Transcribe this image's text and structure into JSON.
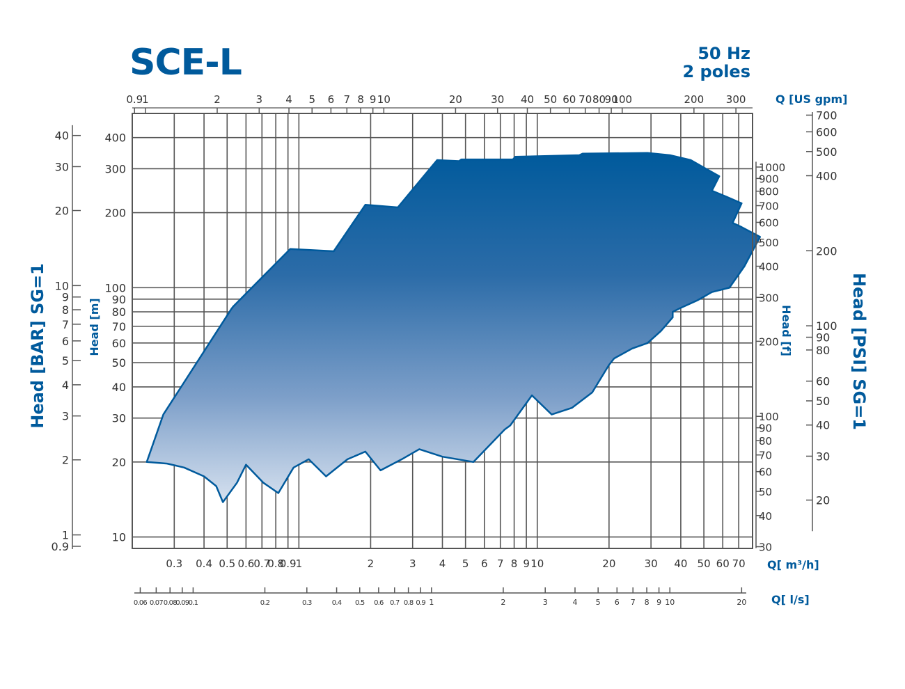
{
  "title": "SCE-L",
  "frequency": "50 Hz",
  "poles": "2 poles",
  "chart_data": {
    "type": "area",
    "title": "SCE-L",
    "subtitle": "50 Hz 2 poles",
    "xlabel": "Q[ m³/h]",
    "ylabel": "Head [m]",
    "x_scale": "log",
    "y_scale": "log",
    "xlim": [
      0.2,
      80
    ],
    "ylim": [
      9,
      500
    ],
    "grid": true,
    "colors": {
      "primary": "#005a9c",
      "grid": "#555555",
      "fill_top": "#005a9c",
      "fill_bottom": "#d6e1ef"
    },
    "x_ticks": [
      {
        "v": 0.3,
        "l": "0.3"
      },
      {
        "v": 0.4,
        "l": "0.4"
      },
      {
        "v": 0.5,
        "l": "0.5"
      },
      {
        "v": 0.6,
        "l": "0.6"
      },
      {
        "v": 0.7,
        "l": "0.7"
      },
      {
        "v": 0.8,
        "l": "0.8"
      },
      {
        "v": 0.9,
        "l": "0.9"
      },
      {
        "v": 1,
        "l": "1"
      },
      {
        "v": 2,
        "l": "2"
      },
      {
        "v": 3,
        "l": "3"
      },
      {
        "v": 4,
        "l": "4"
      },
      {
        "v": 5,
        "l": "5"
      },
      {
        "v": 6,
        "l": "6"
      },
      {
        "v": 7,
        "l": "7"
      },
      {
        "v": 8,
        "l": "8"
      },
      {
        "v": 9,
        "l": "9"
      },
      {
        "v": 10,
        "l": "10"
      },
      {
        "v": 20,
        "l": "20"
      },
      {
        "v": 30,
        "l": "30"
      },
      {
        "v": 40,
        "l": "40"
      },
      {
        "v": 50,
        "l": "50"
      },
      {
        "v": 60,
        "l": "60"
      },
      {
        "v": 70,
        "l": "70"
      }
    ],
    "y_ticks": [
      {
        "v": 10,
        "l": "10"
      },
      {
        "v": 20,
        "l": "20"
      },
      {
        "v": 30,
        "l": "30"
      },
      {
        "v": 40,
        "l": "40"
      },
      {
        "v": 50,
        "l": "50"
      },
      {
        "v": 60,
        "l": "60"
      },
      {
        "v": 70,
        "l": "70"
      },
      {
        "v": 80,
        "l": "80"
      },
      {
        "v": 90,
        "l": "90"
      },
      {
        "v": 100,
        "l": "100"
      },
      {
        "v": 200,
        "l": "200"
      },
      {
        "v": 300,
        "l": "300"
      },
      {
        "v": 400,
        "l": "400"
      }
    ],
    "top_axis": {
      "label": "Q [US gpm]",
      "ticks": [
        {
          "v": 0.9,
          "l": "0.9"
        },
        {
          "v": 1,
          "l": "1"
        },
        {
          "v": 2,
          "l": "2"
        },
        {
          "v": 3,
          "l": "3"
        },
        {
          "v": 4,
          "l": "4"
        },
        {
          "v": 5,
          "l": "5"
        },
        {
          "v": 6,
          "l": "6"
        },
        {
          "v": 7,
          "l": "7"
        },
        {
          "v": 8,
          "l": "8"
        },
        {
          "v": 9,
          "l": "9"
        },
        {
          "v": 10,
          "l": "10"
        },
        {
          "v": 20,
          "l": "20"
        },
        {
          "v": 30,
          "l": "30"
        },
        {
          "v": 40,
          "l": "40"
        },
        {
          "v": 50,
          "l": "50"
        },
        {
          "v": 60,
          "l": "60"
        },
        {
          "v": 70,
          "l": "70"
        },
        {
          "v": 80,
          "l": "80"
        },
        {
          "v": 90,
          "l": "90"
        },
        {
          "v": 100,
          "l": "100"
        },
        {
          "v": 200,
          "l": "200"
        },
        {
          "v": 300,
          "l": "300"
        }
      ]
    },
    "bottom_axis_ls": {
      "label": "Q[ l/s]",
      "ticks": [
        {
          "v": 0.06,
          "l": "0.06"
        },
        {
          "v": 0.07,
          "l": "0.07"
        },
        {
          "v": 0.08,
          "l": "0.08"
        },
        {
          "v": 0.09,
          "l": "0.09"
        },
        {
          "v": 0.1,
          "l": "0.1"
        },
        {
          "v": 0.2,
          "l": "0.2"
        },
        {
          "v": 0.3,
          "l": "0.3"
        },
        {
          "v": 0.4,
          "l": "0.4"
        },
        {
          "v": 0.5,
          "l": "0.5"
        },
        {
          "v": 0.6,
          "l": "0.6"
        },
        {
          "v": 0.7,
          "l": "0.7"
        },
        {
          "v": 0.8,
          "l": "0.8"
        },
        {
          "v": 0.9,
          "l": "0.9"
        },
        {
          "v": 1,
          "l": "1"
        },
        {
          "v": 2,
          "l": "2"
        },
        {
          "v": 3,
          "l": "3"
        },
        {
          "v": 4,
          "l": "4"
        },
        {
          "v": 5,
          "l": "5"
        },
        {
          "v": 6,
          "l": "6"
        },
        {
          "v": 7,
          "l": "7"
        },
        {
          "v": 8,
          "l": "8"
        },
        {
          "v": 9,
          "l": "9"
        },
        {
          "v": 10,
          "l": "10"
        },
        {
          "v": 20,
          "l": "20"
        }
      ]
    },
    "right_axis_ft": {
      "label": "Head [f]",
      "ticks": [
        {
          "v": 30,
          "l": "30"
        },
        {
          "v": 40,
          "l": "40"
        },
        {
          "v": 50,
          "l": "50"
        },
        {
          "v": 60,
          "l": "60"
        },
        {
          "v": 70,
          "l": "70"
        },
        {
          "v": 80,
          "l": "80"
        },
        {
          "v": 90,
          "l": "90"
        },
        {
          "v": 100,
          "l": "100"
        },
        {
          "v": 200,
          "l": "200"
        },
        {
          "v": 300,
          "l": "300"
        },
        {
          "v": 400,
          "l": "400"
        },
        {
          "v": 500,
          "l": "500"
        },
        {
          "v": 600,
          "l": "600"
        },
        {
          "v": 700,
          "l": "700"
        },
        {
          "v": 800,
          "l": "800"
        },
        {
          "v": 900,
          "l": "900"
        },
        {
          "v": 1000,
          "l": "1000"
        }
      ]
    },
    "right_axis_psi": {
      "label": "Head [PSI] SG=1",
      "ticks": [
        {
          "v": 20,
          "l": "20"
        },
        {
          "v": 30,
          "l": "30"
        },
        {
          "v": 40,
          "l": "40"
        },
        {
          "v": 50,
          "l": "50"
        },
        {
          "v": 60,
          "l": "60"
        },
        {
          "v": 80,
          "l": "80"
        },
        {
          "v": 90,
          "l": "90"
        },
        {
          "v": 100,
          "l": "100"
        },
        {
          "v": 200,
          "l": "200"
        },
        {
          "v": 400,
          "l": "400"
        },
        {
          "v": 500,
          "l": "500"
        },
        {
          "v": 600,
          "l": "600"
        },
        {
          "v": 700,
          "l": "700"
        }
      ]
    },
    "left_axis_bar": {
      "label": "Head [BAR] SG=1",
      "ticks": [
        {
          "v": 0.9,
          "l": "0.9"
        },
        {
          "v": 1,
          "l": "1"
        },
        {
          "v": 2,
          "l": "2"
        },
        {
          "v": 3,
          "l": "3"
        },
        {
          "v": 4,
          "l": "4"
        },
        {
          "v": 5,
          "l": "5"
        },
        {
          "v": 6,
          "l": "6"
        },
        {
          "v": 7,
          "l": "7"
        },
        {
          "v": 8,
          "l": "8"
        },
        {
          "v": 9,
          "l": "9"
        },
        {
          "v": 10,
          "l": "10"
        },
        {
          "v": 20,
          "l": "20"
        },
        {
          "v": 30,
          "l": "30"
        },
        {
          "v": 40,
          "l": "40"
        }
      ]
    },
    "envelope": [
      [
        0.23,
        20
      ],
      [
        0.27,
        31
      ],
      [
        0.52,
        82
      ],
      [
        0.53,
        84
      ],
      [
        0.92,
        143
      ],
      [
        1.4,
        140
      ],
      [
        1.9,
        215
      ],
      [
        2.6,
        210
      ],
      [
        3.8,
        325
      ],
      [
        4.7,
        322
      ],
      [
        4.8,
        327
      ],
      [
        7.9,
        327
      ],
      [
        8.1,
        335
      ],
      [
        15,
        340
      ],
      [
        15.5,
        345
      ],
      [
        29,
        347
      ],
      [
        36,
        340
      ],
      [
        44,
        325
      ],
      [
        51,
        300
      ],
      [
        58,
        280
      ],
      [
        54,
        245
      ],
      [
        62,
        232
      ],
      [
        72,
        218
      ],
      [
        66,
        182
      ],
      [
        72,
        175
      ],
      [
        86,
        160
      ],
      [
        74,
        122
      ],
      [
        64,
        100
      ],
      [
        54,
        96
      ],
      [
        47,
        89
      ],
      [
        40,
        83
      ],
      [
        37,
        80
      ],
      [
        37,
        76
      ],
      [
        33,
        67
      ],
      [
        29,
        60
      ],
      [
        25,
        57
      ],
      [
        21,
        52
      ],
      [
        20,
        49
      ],
      [
        17,
        38
      ],
      [
        14,
        33
      ],
      [
        11.5,
        31
      ],
      [
        9.5,
        37
      ],
      [
        7.7,
        28
      ],
      [
        7.3,
        27
      ],
      [
        5.4,
        20
      ],
      [
        4.0,
        21
      ],
      [
        3.2,
        22.5
      ],
      [
        2.7,
        20.5
      ],
      [
        2.2,
        18.5
      ],
      [
        1.9,
        22
      ],
      [
        1.6,
        20.5
      ],
      [
        1.3,
        17.5
      ],
      [
        1.1,
        20.5
      ],
      [
        0.95,
        19
      ],
      [
        0.82,
        15
      ],
      [
        0.71,
        16.5
      ],
      [
        0.6,
        19.5
      ],
      [
        0.55,
        16.5
      ],
      [
        0.48,
        13.8
      ],
      [
        0.45,
        16
      ],
      [
        0.4,
        17.5
      ],
      [
        0.33,
        19
      ],
      [
        0.28,
        19.7
      ],
      [
        0.23,
        20
      ]
    ]
  }
}
